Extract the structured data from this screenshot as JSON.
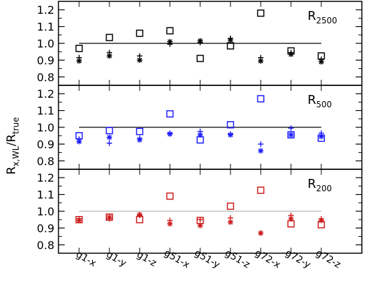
{
  "chart_data": {
    "type": "scatter",
    "ylabel": {
      "main": "R",
      "sub": "x,WL",
      "slash": "/R",
      "sub2": "true"
    },
    "categories": [
      "g1-x",
      "g1-y",
      "g1-z",
      "g51-x",
      "g51-y",
      "g51-z",
      "g72-x",
      "g72-y",
      "g72-z"
    ],
    "ylim": [
      0.75,
      1.25
    ],
    "yticks": [
      "0.8",
      "0.9",
      "1.0",
      "1.1",
      "1.2"
    ],
    "ytick_values": [
      0.8,
      0.9,
      1.0,
      1.1,
      1.2
    ],
    "reference_line": 1.0,
    "panels": [
      {
        "label_main": "R",
        "label_sub": "2500",
        "color": "#000000",
        "reference_color": "#000000",
        "square": [
          0.97,
          1.035,
          1.06,
          1.075,
          0.91,
          0.985,
          1.18,
          0.955,
          0.925
        ],
        "plus": [
          0.915,
          0.945,
          0.925,
          0.995,
          1.005,
          1.03,
          0.915,
          0.945,
          0.905
        ],
        "star": [
          0.895,
          0.925,
          0.9,
          1.01,
          1.015,
          1.02,
          0.895,
          0.935,
          0.89
        ]
      },
      {
        "label_main": "R",
        "label_sub": "500",
        "color": "#1a1aff",
        "reference_color": "#000000",
        "square": [
          0.95,
          0.98,
          0.975,
          1.08,
          0.925,
          1.015,
          1.17,
          0.955,
          0.935
        ],
        "plus": [
          0.93,
          0.905,
          0.935,
          0.965,
          0.975,
          0.96,
          0.9,
          0.995,
          0.965
        ],
        "star": [
          0.915,
          0.94,
          0.925,
          0.96,
          0.955,
          0.955,
          0.86,
          0.955,
          0.945
        ]
      },
      {
        "label_main": "R",
        "label_sub": "200",
        "color": "#cc1a1a",
        "reference_color": "#b3b3b3",
        "square": [
          0.95,
          0.965,
          0.95,
          1.09,
          0.945,
          1.03,
          1.125,
          0.925,
          0.92
        ],
        "plus": [
          0.955,
          0.955,
          0.975,
          0.945,
          0.95,
          0.96,
          0.87,
          0.975,
          0.955
        ],
        "star": [
          0.945,
          0.965,
          0.98,
          0.925,
          0.915,
          0.935,
          0.87,
          0.955,
          0.945
        ]
      }
    ]
  }
}
